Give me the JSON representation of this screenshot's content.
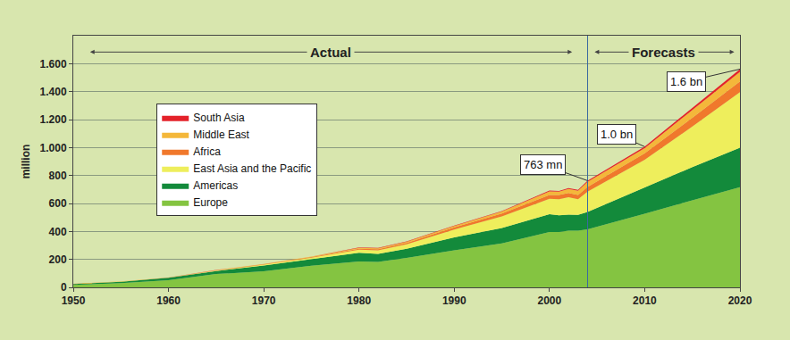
{
  "chart_data": {
    "type": "area",
    "stacked": true,
    "grid": true,
    "legend": "upper left",
    "y_label": "million",
    "x": [
      1950,
      1955,
      1960,
      1965,
      1970,
      1975,
      1980,
      1982,
      1985,
      1990,
      1995,
      2000,
      2001,
      2002,
      2003,
      2004,
      2010,
      2015,
      2020
    ],
    "xlim": [
      1950,
      2020
    ],
    "xticks": [
      1950,
      1960,
      1970,
      1980,
      1990,
      2000,
      2010,
      2020
    ],
    "ylim": [
      0,
      1800
    ],
    "yticks": [
      0,
      200,
      400,
      600,
      800,
      {
        "value": 1000,
        "label": "1.000"
      },
      {
        "value": 1200,
        "label": "1.200"
      },
      {
        "value": 1400,
        "label": "1.400"
      },
      {
        "value": 1600,
        "label": "1.600"
      }
    ],
    "series": [
      {
        "name": "Europe",
        "color": "#84c441",
        "values": [
          17,
          30,
          51,
          95,
          115,
          155,
          185,
          182,
          210,
          265,
          315,
          395,
          395,
          405,
          405,
          415,
          527,
          620,
          717
        ]
      },
      {
        "name": "Americas",
        "color": "#138a3b",
        "values": [
          7.5,
          10,
          17,
          22,
          42,
          48,
          62,
          58,
          66,
          93,
          110,
          128,
          121,
          115,
          113,
          125,
          190,
          240,
          282
        ]
      },
      {
        "name": "East Asia and the Pacific",
        "color": "#eeee5c",
        "values": [
          0.2,
          1,
          1,
          3,
          6,
          9,
          22,
          25,
          32,
          56,
          83,
          110,
          115,
          125,
          112,
          145,
          195,
          290,
          397
        ]
      },
      {
        "name": "Africa",
        "color": "#f0782c",
        "values": [
          0.5,
          1,
          1,
          2,
          2.4,
          4.7,
          7,
          8,
          10,
          15,
          20,
          28,
          29,
          30,
          31,
          33,
          47,
          62,
          77
        ]
      },
      {
        "name": "Middle East",
        "color": "#f4b73a",
        "values": [
          0.2,
          0.5,
          0.6,
          1.5,
          1.9,
          3,
          7,
          7,
          8,
          10,
          14,
          25,
          24,
          29,
          30,
          36,
          37,
          55,
          69
        ]
      },
      {
        "name": "South Asia",
        "color": "#e4222a",
        "values": [
          0.05,
          0.1,
          0.2,
          0.4,
          0.6,
          1,
          2,
          2.5,
          3,
          3,
          4,
          6,
          6,
          6,
          7,
          8,
          11,
          14,
          19
        ]
      }
    ],
    "periods": [
      {
        "label": "Actual",
        "from": 1950,
        "to": 2004
      },
      {
        "label": "Forecasts",
        "from": 2004,
        "to": 2020
      }
    ],
    "annotations": [
      {
        "text": "763 mn",
        "x": 2004,
        "y": 763
      },
      {
        "text": "1.0 bn",
        "x": 2010,
        "y": 1006
      },
      {
        "text": "1.6 bn",
        "x": 2020,
        "y": 1561
      }
    ]
  }
}
